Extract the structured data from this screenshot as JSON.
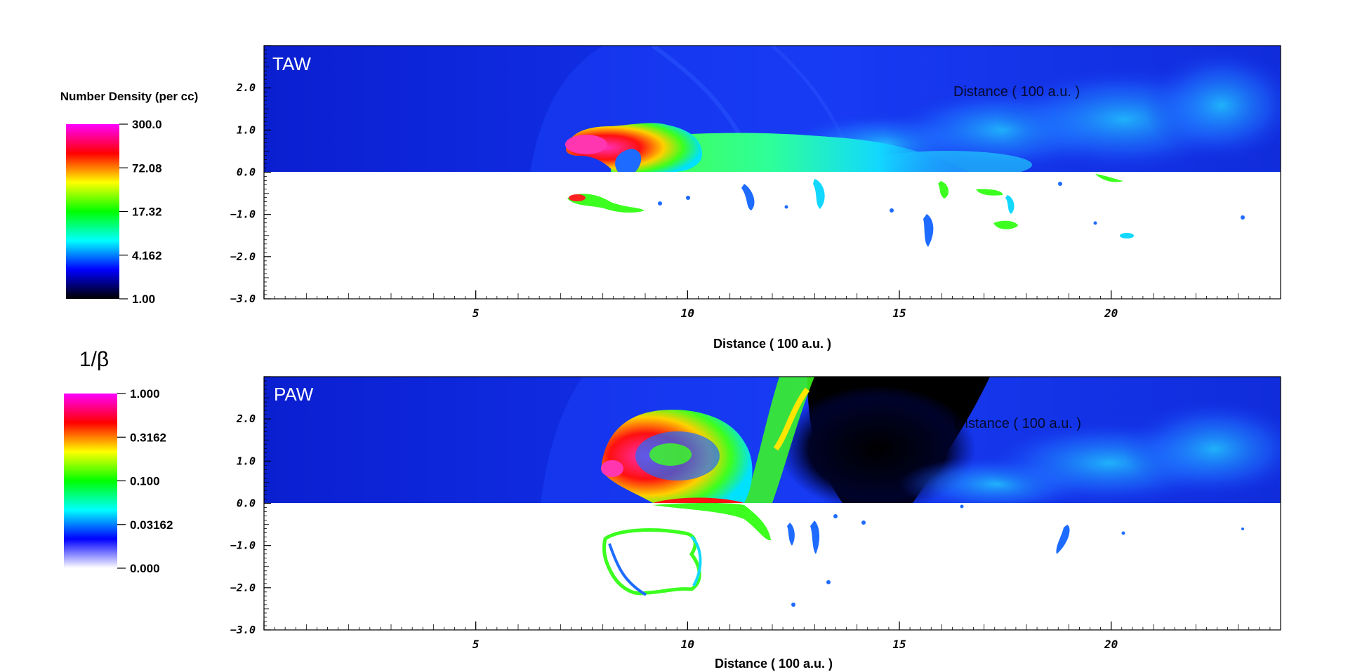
{
  "colorbars": [
    {
      "title": "Number Density (per cc)",
      "tick_labels": [
        "300.0",
        "72.08",
        "17.32",
        "4.162",
        "1.00"
      ],
      "gradient": [
        "#ff00ff",
        "#ff0000",
        "#ffff00",
        "#00ff00",
        "#00ffff",
        "#0000ff",
        "#000000"
      ]
    },
    {
      "title": "1/β",
      "tick_labels": [
        "1.000",
        "0.3162",
        "0.100",
        "0.03162",
        "0.000"
      ],
      "gradient": [
        "#ff00ff",
        "#ff0000",
        "#ffff00",
        "#00ff00",
        "#00ffff",
        "#0000ff",
        "#ffffff"
      ]
    }
  ],
  "chart_data": [
    {
      "type": "heatmap",
      "panel_label": "TAW",
      "xlabel": "Distance ( 100 a.u. )",
      "overlay_text": "Distance ( 100 a.u. )",
      "xlim": [
        0,
        24
      ],
      "ylim": [
        -3,
        3
      ],
      "x_ticks": [
        5,
        10,
        15,
        20
      ],
      "x_tick_labels": [
        "5",
        "10",
        "15",
        "20"
      ],
      "y_ticks": [
        2,
        1,
        0,
        -1,
        -2,
        -3
      ],
      "y_tick_labels": [
        "2.0",
        "1.0",
        "0.0",
        "−1.0",
        "−2.0",
        "−3.0"
      ],
      "upper_half": "number density",
      "lower_half": "1/β",
      "background_color": "#0a1fd0"
    },
    {
      "type": "heatmap",
      "panel_label": "PAW",
      "xlabel": "Distance ( 100 a.u. )",
      "overlay_text": "Distance ( 100 a.u. )",
      "xlim": [
        0,
        24
      ],
      "ylim": [
        -3,
        3
      ],
      "x_ticks": [
        5,
        10,
        15,
        20
      ],
      "x_tick_labels": [
        "5",
        "10",
        "15",
        "20"
      ],
      "y_ticks": [
        2,
        1,
        0,
        -1,
        -2,
        -3
      ],
      "y_tick_labels": [
        "2.0",
        "1.0",
        "0.0",
        "−1.0",
        "−2.0",
        "−3.0"
      ],
      "upper_half": "number density",
      "lower_half": "1/β",
      "background_color": "#0a1fd0"
    }
  ]
}
